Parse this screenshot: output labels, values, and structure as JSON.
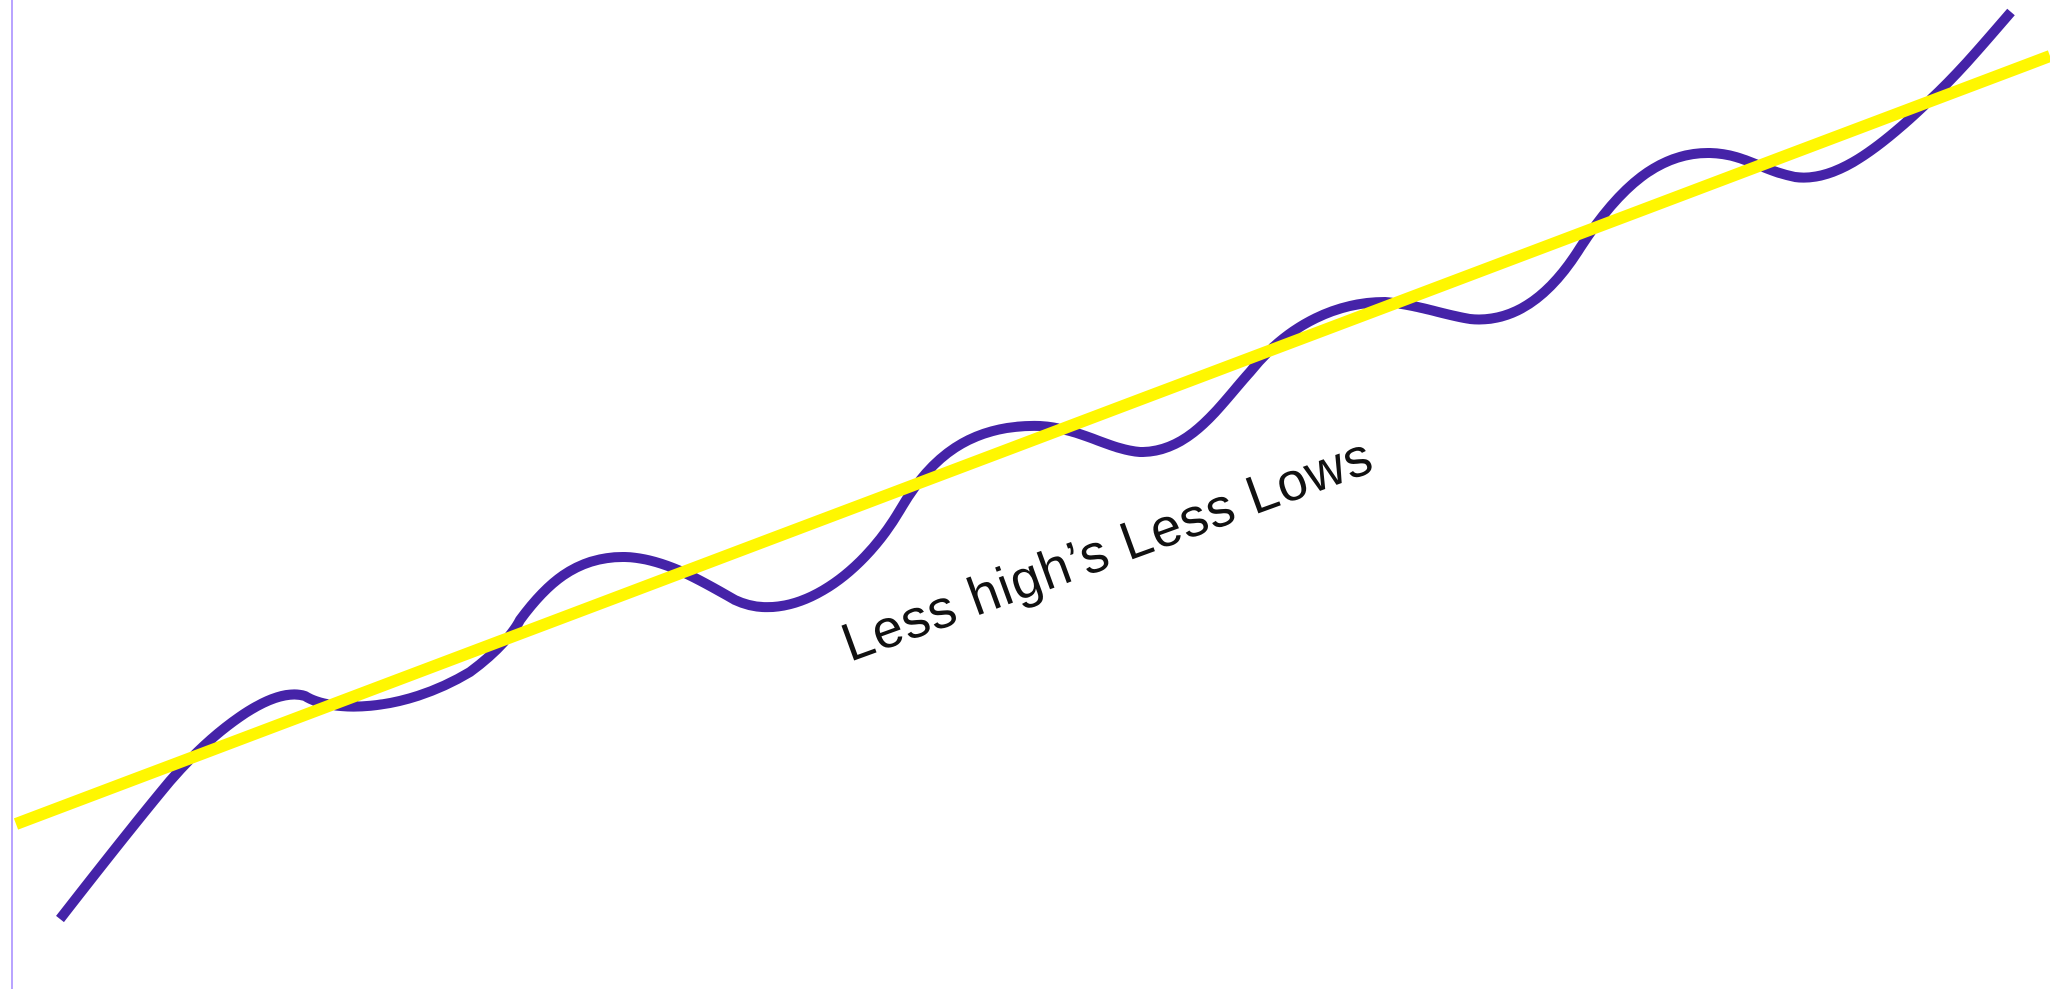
{
  "diagram": {
    "annotation": "Less high’s Less Lows",
    "colors": {
      "background": "#ffffff",
      "wavy_line": "#4523A8",
      "trend_line": "#FFF700",
      "left_rule": "#B9A4FF",
      "label": "#111111"
    }
  }
}
